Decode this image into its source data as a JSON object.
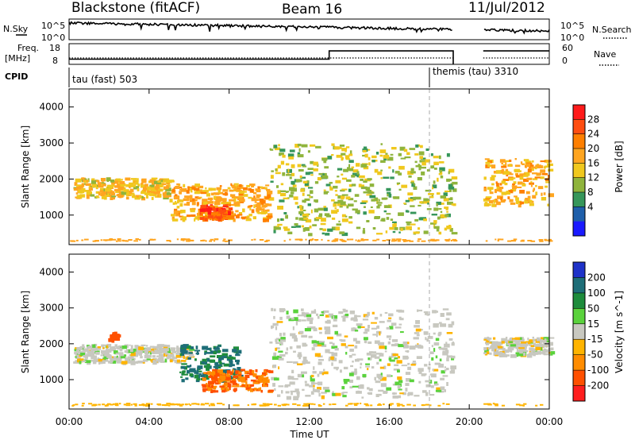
{
  "header": {
    "station": "Blackstone (fitACF)",
    "beam": "Beam 16",
    "date": "11/Jul/2012"
  },
  "top_panels": {
    "nsky_label": "N.Sky",
    "nsearch_label": "N.Search",
    "noise_ticks": [
      "10^5",
      "10^0"
    ],
    "noise_ticks_right": [
      "10^5",
      "10^0"
    ],
    "freq_label_line1": "Freq.",
    "freq_label_line2": "[MHz]",
    "freq_ticks": [
      "18",
      "8"
    ],
    "nave_label": "Nave",
    "nave_ticks": [
      "60",
      "0"
    ],
    "cpid_label": "CPID",
    "cpid_1": "tau (fast) 503",
    "cpid_2": "themis (tau) 3310"
  },
  "axes": {
    "x_title": "Time UT",
    "x_ticks": [
      "00:00",
      "04:00",
      "08:00",
      "12:00",
      "16:00",
      "20:00",
      "00:00"
    ],
    "y_title": "Slant Range [km]",
    "y_ticks": [
      "4000",
      "3000",
      "2000",
      "1000"
    ]
  },
  "power_scale": {
    "title": "Power [dB]",
    "labels": [
      "28",
      "24",
      "20",
      "16",
      "12",
      "8",
      "4"
    ],
    "colors": [
      "#ff1a1a",
      "#ff4d10",
      "#ff7f00",
      "#ffa520",
      "#f0c81e",
      "#8fb43c",
      "#36965a",
      "#1f5faa",
      "#1a1aff"
    ]
  },
  "velocity_scale": {
    "title": "Velocity [m s^-1]",
    "labels": [
      "200",
      "100",
      "50",
      "15",
      "-15",
      "-50",
      "-100",
      "-200"
    ],
    "colors": [
      "#1e32c8",
      "#1e6e78",
      "#1e8c3c",
      "#5ad23c",
      "#c8c8c0",
      "#ffb400",
      "#ff8c00",
      "#ff5000",
      "#ff1e1e"
    ]
  },
  "chart_data": {
    "type": "heatmap",
    "title": "Blackstone (fitACF) Beam 16 11/Jul/2012",
    "xlabel": "Time UT",
    "ylabel": "Slant Range [km]",
    "xlim": [
      0,
      24
    ],
    "ylim": [
      180,
      4500
    ],
    "data_gap_hours": [
      19.2,
      20.7
    ],
    "cpid_change_hour": 18.0,
    "frequency_mhz": [
      {
        "t_start": 0.0,
        "t_end": 13.0,
        "value": 10.5
      },
      {
        "t_start": 13.0,
        "t_end": 19.2,
        "value": 14.5
      },
      {
        "t_start": 20.7,
        "t_end": 24.0,
        "value": 14.5
      }
    ],
    "power_regions": [
      {
        "t0": 0.2,
        "t1": 5.0,
        "r0": 1500,
        "r1": 2050,
        "power_db": 16
      },
      {
        "t0": 5.0,
        "t1": 10.0,
        "r0": 900,
        "r1": 1900,
        "power_db": 18
      },
      {
        "t0": 6.5,
        "t1": 8.0,
        "r0": 900,
        "r1": 1300,
        "power_db": 26
      },
      {
        "t0": 10.0,
        "t1": 19.2,
        "r0": 500,
        "r1": 3000,
        "power_db": 12
      },
      {
        "t0": 20.7,
        "t1": 24.0,
        "r0": 1300,
        "r1": 2600,
        "power_db": 18
      }
    ],
    "velocity_regions": [
      {
        "t0": 0.2,
        "t1": 6.0,
        "r0": 1500,
        "r1": 2000,
        "velocity_ms": 0
      },
      {
        "t0": 1.9,
        "t1": 2.4,
        "r0": 2100,
        "r1": 2350,
        "velocity_ms": -200
      },
      {
        "t0": 5.5,
        "t1": 8.5,
        "r0": 1000,
        "r1": 2000,
        "velocity_ms": 100
      },
      {
        "t0": 6.5,
        "t1": 10.0,
        "r0": 700,
        "r1": 1300,
        "velocity_ms": -100
      },
      {
        "t0": 10.0,
        "t1": 19.2,
        "r0": 500,
        "r1": 3000,
        "velocity_ms": 0
      },
      {
        "t0": 20.7,
        "t1": 24.0,
        "r0": 1700,
        "r1": 2200,
        "velocity_ms": 0
      }
    ]
  }
}
